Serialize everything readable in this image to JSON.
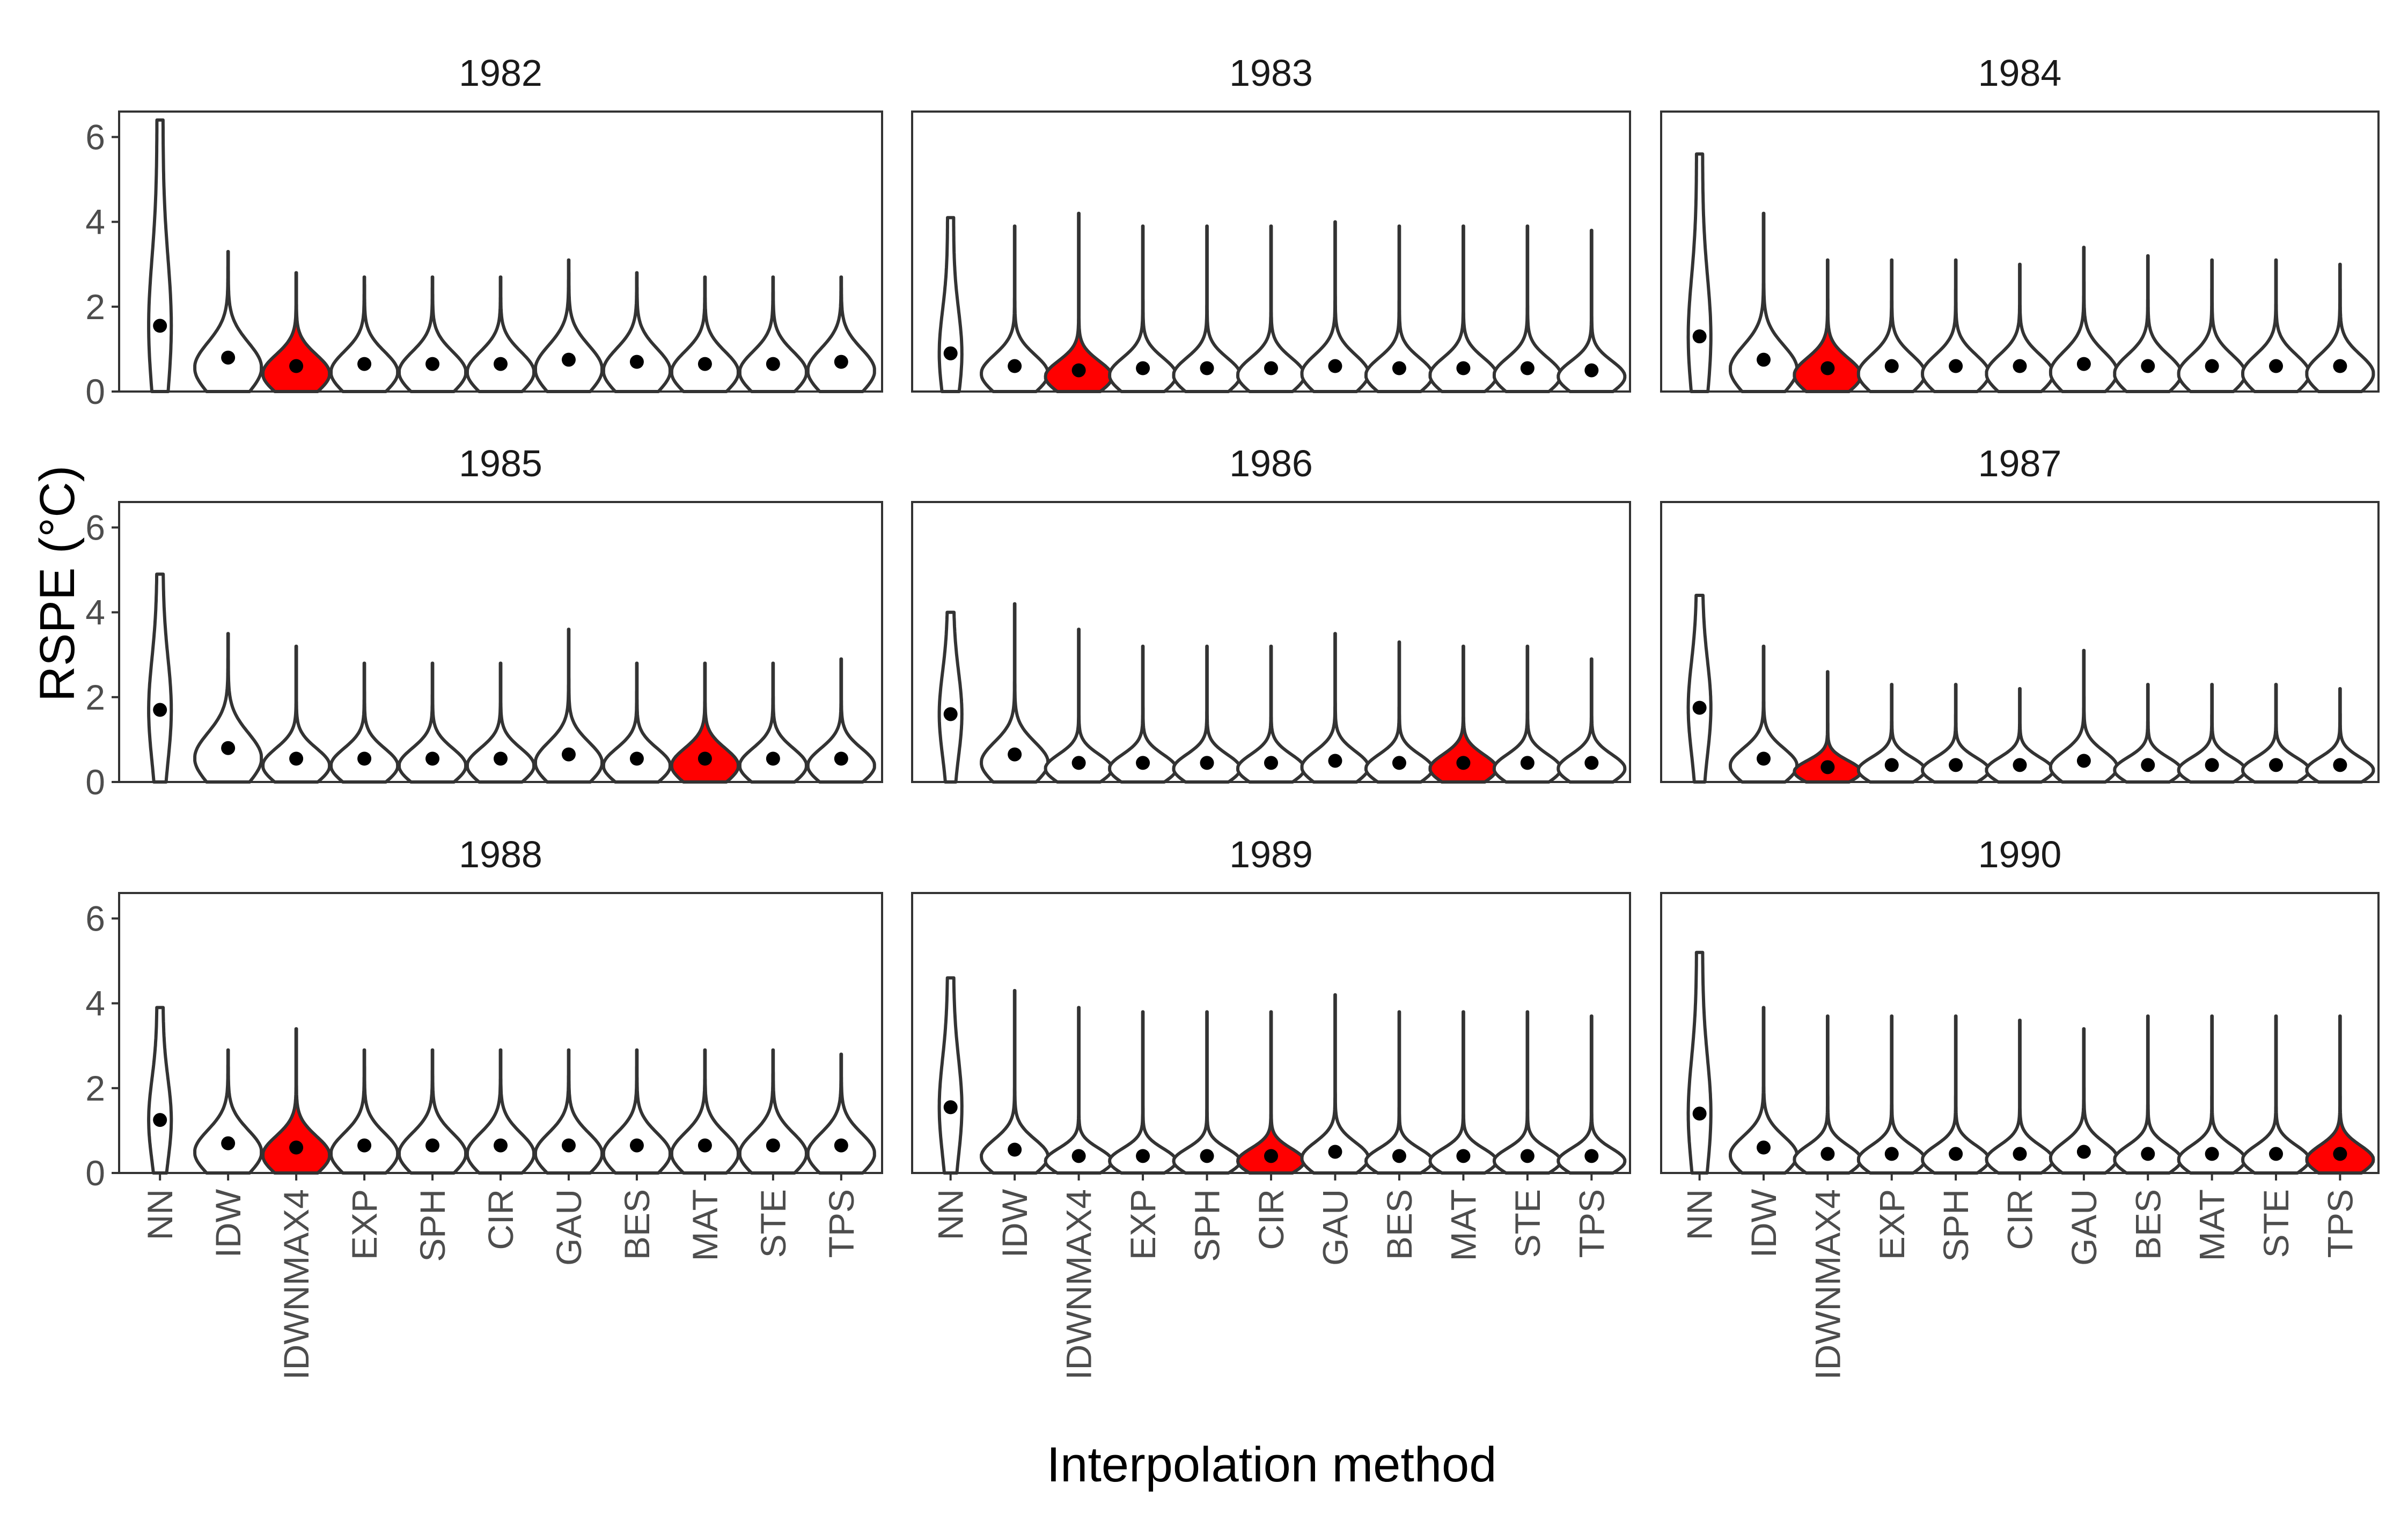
{
  "chart_data": {
    "type": "violin",
    "xlabel": "Interpolation method",
    "ylabel": "RSPE (°C)",
    "ylim": [
      0,
      6.6
    ],
    "yticks": [
      0,
      2,
      4,
      6
    ],
    "categories": [
      "NN",
      "IDW",
      "IDWNMAX4",
      "EXP",
      "SPH",
      "CIR",
      "GAU",
      "BES",
      "MAT",
      "STE",
      "TPS"
    ],
    "colors": {
      "default_fill": "#ffffff",
      "highlight_fill": "#ff0000",
      "outline": "#333333",
      "median": "#000000"
    },
    "panels": [
      {
        "title": "1982",
        "highlight": "IDWNMAX4",
        "medians": [
          1.55,
          0.8,
          0.6,
          0.65,
          0.65,
          0.65,
          0.75,
          0.7,
          0.65,
          0.65,
          0.7
        ],
        "maxima": [
          6.4,
          3.3,
          2.8,
          2.7,
          2.7,
          2.7,
          3.1,
          2.8,
          2.7,
          2.7,
          2.7
        ]
      },
      {
        "title": "1983",
        "highlight": "IDWNMAX4",
        "medians": [
          0.9,
          0.6,
          0.5,
          0.55,
          0.55,
          0.55,
          0.6,
          0.55,
          0.55,
          0.55,
          0.5
        ],
        "maxima": [
          4.1,
          3.9,
          4.2,
          3.9,
          3.9,
          3.9,
          4.0,
          3.9,
          3.9,
          3.9,
          3.8
        ]
      },
      {
        "title": "1984",
        "highlight": "IDWNMAX4",
        "medians": [
          1.3,
          0.75,
          0.55,
          0.6,
          0.6,
          0.6,
          0.65,
          0.6,
          0.6,
          0.6,
          0.6
        ],
        "maxima": [
          5.6,
          4.2,
          3.1,
          3.1,
          3.1,
          3.0,
          3.4,
          3.2,
          3.1,
          3.1,
          3.0
        ]
      },
      {
        "title": "1985",
        "highlight": "MAT",
        "medians": [
          1.7,
          0.8,
          0.55,
          0.55,
          0.55,
          0.55,
          0.65,
          0.55,
          0.55,
          0.55,
          0.55
        ],
        "maxima": [
          4.9,
          3.5,
          3.2,
          2.8,
          2.8,
          2.8,
          3.6,
          2.8,
          2.8,
          2.8,
          2.9
        ]
      },
      {
        "title": "1986",
        "highlight": "MAT",
        "medians": [
          1.6,
          0.65,
          0.45,
          0.45,
          0.45,
          0.45,
          0.5,
          0.45,
          0.45,
          0.45,
          0.45
        ],
        "maxima": [
          4.0,
          4.2,
          3.6,
          3.2,
          3.2,
          3.2,
          3.5,
          3.3,
          3.2,
          3.2,
          2.9
        ]
      },
      {
        "title": "1987",
        "highlight": "IDWNMAX4",
        "medians": [
          1.75,
          0.55,
          0.35,
          0.4,
          0.4,
          0.4,
          0.5,
          0.4,
          0.4,
          0.4,
          0.4
        ],
        "maxima": [
          4.4,
          3.2,
          2.6,
          2.3,
          2.3,
          2.2,
          3.1,
          2.3,
          2.3,
          2.3,
          2.2
        ]
      },
      {
        "title": "1988",
        "highlight": "IDWNMAX4",
        "medians": [
          1.25,
          0.7,
          0.6,
          0.65,
          0.65,
          0.65,
          0.65,
          0.65,
          0.65,
          0.65,
          0.65
        ],
        "maxima": [
          3.9,
          2.9,
          3.4,
          2.9,
          2.9,
          2.9,
          2.9,
          2.9,
          2.9,
          2.9,
          2.8
        ]
      },
      {
        "title": "1989",
        "highlight": "CIR",
        "medians": [
          1.55,
          0.55,
          0.4,
          0.4,
          0.4,
          0.4,
          0.5,
          0.4,
          0.4,
          0.4,
          0.4
        ],
        "maxima": [
          4.6,
          4.3,
          3.9,
          3.8,
          3.8,
          3.8,
          4.2,
          3.8,
          3.8,
          3.8,
          3.7
        ]
      },
      {
        "title": "1990",
        "highlight": "TPS",
        "medians": [
          1.4,
          0.6,
          0.45,
          0.45,
          0.45,
          0.45,
          0.5,
          0.45,
          0.45,
          0.45,
          0.45
        ],
        "maxima": [
          5.2,
          3.9,
          3.7,
          3.7,
          3.7,
          3.6,
          3.4,
          3.7,
          3.7,
          3.7,
          3.7
        ]
      }
    ]
  }
}
